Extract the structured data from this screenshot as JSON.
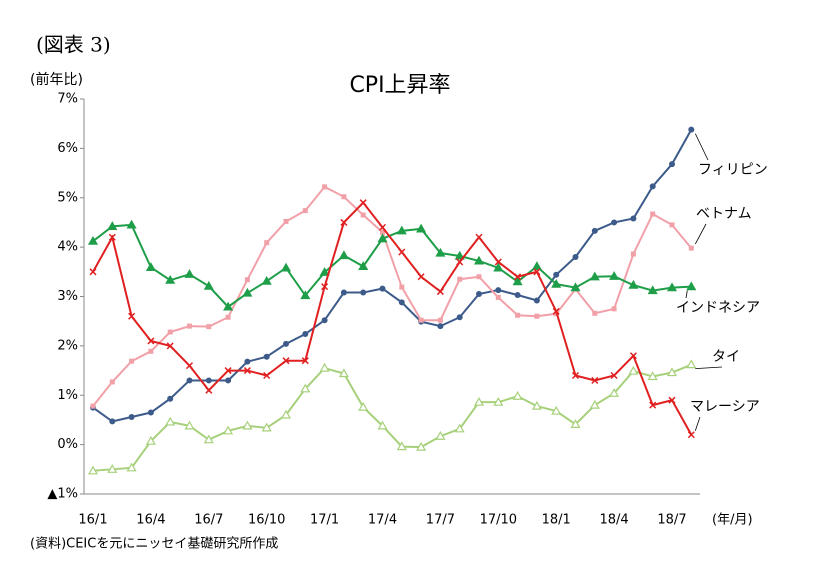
{
  "chart_data": {
    "type": "line",
    "figure_label": "(図表 3)",
    "title": "CPI上昇率",
    "y_unit_label": "(前年比)",
    "x_unit_label": "(年/月)",
    "source": "(資料)CEICを元にニッセイ基礎研究所作成",
    "categories": [
      "16/1",
      null,
      null,
      "16/4",
      null,
      null,
      "16/7",
      null,
      null,
      "16/10",
      null,
      null,
      "17/1",
      null,
      null,
      "17/4",
      null,
      null,
      "17/7",
      null,
      null,
      "17/10",
      null,
      null,
      "18/1",
      null,
      null,
      "18/4",
      null,
      null,
      "18/7",
      null
    ],
    "ylim": [
      -1,
      7
    ],
    "yticks": [
      {
        "value": -1,
        "label": "▲1%"
      },
      {
        "value": 0,
        "label": "0%"
      },
      {
        "value": 1,
        "label": "1%"
      },
      {
        "value": 2,
        "label": "2%"
      },
      {
        "value": 3,
        "label": "3%"
      },
      {
        "value": 4,
        "label": "4%"
      },
      {
        "value": 5,
        "label": "5%"
      },
      {
        "value": 6,
        "label": "6%"
      },
      {
        "value": 7,
        "label": "7%"
      }
    ],
    "grid": false,
    "series": [
      {
        "name": "フィリピン",
        "color": "#3c5a8a",
        "marker": "circle",
        "values": [
          0.75,
          0.47,
          0.56,
          0.65,
          0.93,
          1.3,
          1.3,
          1.3,
          1.68,
          1.78,
          2.04,
          2.24,
          2.52,
          3.08,
          3.08,
          3.16,
          2.88,
          2.49,
          2.4,
          2.58,
          3.05,
          3.13,
          3.03,
          2.92,
          3.44,
          3.8,
          4.33,
          4.5,
          4.58,
          5.23,
          5.68,
          6.38
        ]
      },
      {
        "name": "ベトナム",
        "color": "#f2a0a8",
        "marker": "square",
        "values": [
          0.78,
          1.27,
          1.69,
          1.89,
          2.28,
          2.4,
          2.39,
          2.58,
          3.34,
          4.09,
          4.52,
          4.74,
          5.22,
          5.02,
          4.65,
          4.3,
          3.19,
          2.52,
          2.52,
          3.35,
          3.4,
          2.98,
          2.62,
          2.6,
          2.65,
          3.15,
          2.66,
          2.75,
          3.86,
          4.67,
          4.45,
          3.98
        ]
      },
      {
        "name": "インドネシア",
        "color": "#1e9e48",
        "marker": "triangle",
        "values": [
          4.12,
          4.42,
          4.45,
          3.59,
          3.33,
          3.45,
          3.21,
          2.79,
          3.07,
          3.31,
          3.58,
          3.02,
          3.49,
          3.83,
          3.61,
          4.17,
          4.33,
          4.37,
          3.88,
          3.82,
          3.72,
          3.58,
          3.3,
          3.61,
          3.25,
          3.18,
          3.4,
          3.41,
          3.23,
          3.12,
          3.18,
          3.2
        ]
      },
      {
        "name": "タイ",
        "color": "#a6d07a",
        "marker": "triangle-open",
        "values": [
          -0.53,
          -0.5,
          -0.47,
          0.07,
          0.46,
          0.38,
          0.1,
          0.28,
          0.38,
          0.34,
          0.6,
          1.13,
          1.55,
          1.44,
          0.76,
          0.38,
          -0.04,
          -0.05,
          0.17,
          0.32,
          0.86,
          0.86,
          0.98,
          0.78,
          0.68,
          0.41,
          0.8,
          1.04,
          1.49,
          1.38,
          1.46,
          1.62
        ]
      },
      {
        "name": "マレーシア",
        "color": "#e02020",
        "marker": "x",
        "values": [
          3.5,
          4.2,
          2.6,
          2.1,
          2.0,
          1.6,
          1.1,
          1.5,
          1.5,
          1.4,
          1.7,
          1.7,
          3.2,
          4.5,
          4.9,
          4.4,
          3.9,
          3.4,
          3.1,
          3.7,
          4.2,
          3.7,
          3.4,
          3.5,
          2.7,
          1.4,
          1.3,
          1.4,
          1.8,
          0.8,
          0.9,
          0.2
        ]
      }
    ]
  }
}
